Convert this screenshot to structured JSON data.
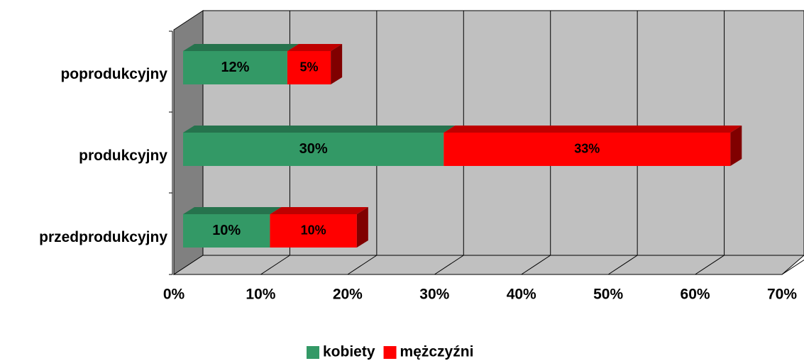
{
  "chart_data": {
    "type": "bar3d_stacked_horizontal",
    "categories": [
      "przedprodukcyjny",
      "produkcyjny",
      "poprodukcyjny"
    ],
    "series": [
      {
        "name": "kobiety",
        "color": "#339966",
        "values": [
          10,
          30,
          12
        ],
        "value_labels": [
          "10%",
          "30%",
          "12%"
        ]
      },
      {
        "name": "mężczyźni",
        "color": "#ff0000",
        "values": [
          10,
          33,
          5
        ],
        "value_labels": [
          "10%",
          "33%",
          "5%"
        ]
      }
    ],
    "xlim": [
      0,
      70
    ],
    "xticks": [
      {
        "value": 0,
        "label": "0%"
      },
      {
        "value": 10,
        "label": "10%"
      },
      {
        "value": 20,
        "label": "20%"
      },
      {
        "value": 30,
        "label": "30%"
      },
      {
        "value": 40,
        "label": "40%"
      },
      {
        "value": 50,
        "label": "50%"
      },
      {
        "value": 60,
        "label": "60%"
      },
      {
        "value": 70,
        "label": "70%"
      }
    ],
    "grid": true,
    "legend": "bottom"
  }
}
